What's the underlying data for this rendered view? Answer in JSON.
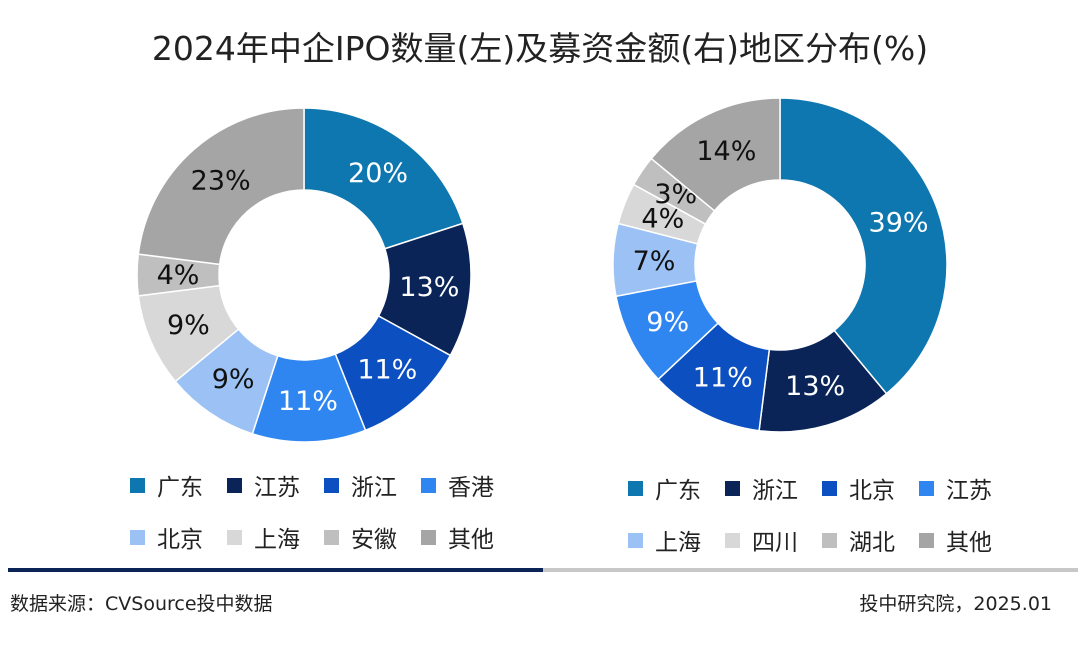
{
  "title": "2024年中企IPO数量(左)及募资金额(右)地区分布(%)",
  "palette": [
    "#0f77b0",
    "#0b2458",
    "#0b4fc0",
    "#2f86f0",
    "#9cc2f5",
    "#d8d8d8",
    "#bfbfbf",
    "#a5a5a5"
  ],
  "chart_data": [
    {
      "type": "pie",
      "donut": true,
      "categories": [
        "广东",
        "江苏",
        "浙江",
        "香港",
        "北京",
        "上海",
        "安徽",
        "其他"
      ],
      "values": [
        20,
        13,
        11,
        11,
        9,
        9,
        4,
        23
      ],
      "labels": [
        "20%",
        "13%",
        "11%",
        "11%",
        "9%",
        "9%",
        "4%",
        "23%"
      ],
      "legend_placement": "bottom"
    },
    {
      "type": "pie",
      "donut": true,
      "categories": [
        "广东",
        "浙江",
        "北京",
        "江苏",
        "上海",
        "四川",
        "湖北",
        "其他"
      ],
      "values": [
        39,
        13,
        11,
        9,
        7,
        4,
        3,
        14
      ],
      "labels": [
        "39%",
        "13%",
        "11%",
        "9%",
        "7%",
        "4%",
        "3%",
        "14%"
      ],
      "legend_placement": "bottom"
    }
  ],
  "footer": {
    "source": "数据来源：CVSource投中数据",
    "credit": "投中研究院，2025.01"
  }
}
